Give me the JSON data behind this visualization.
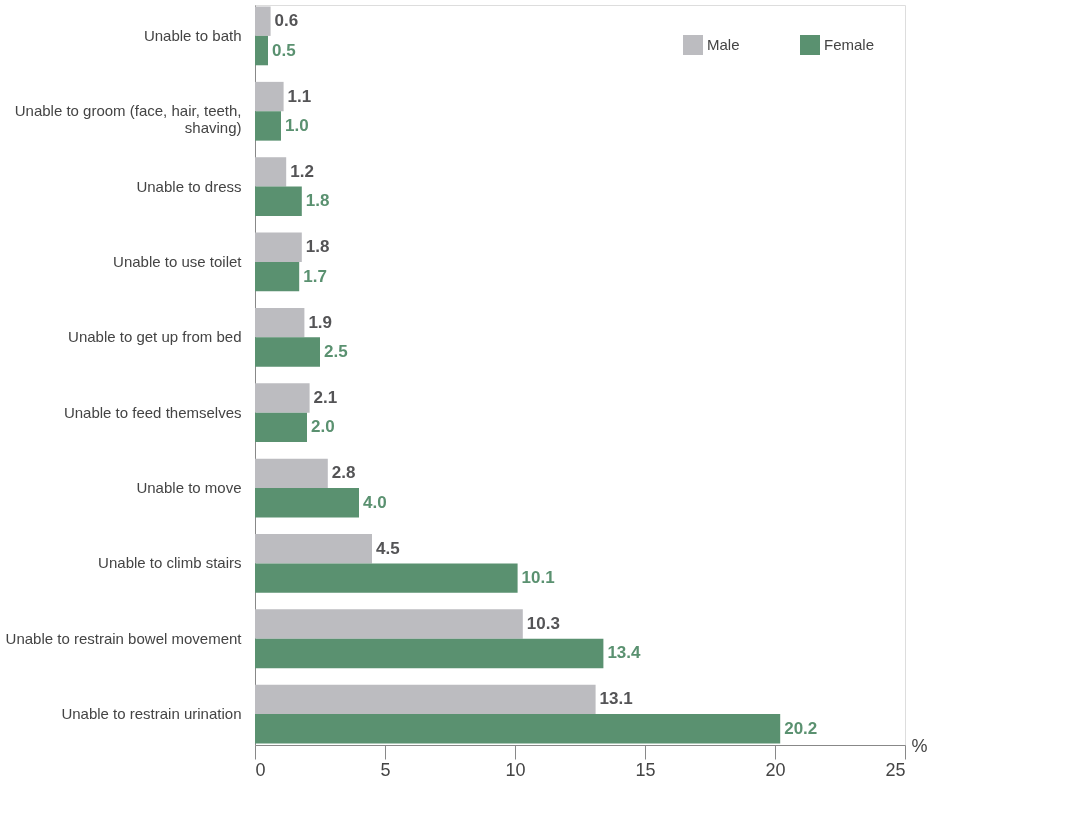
{
  "chart_data": {
    "type": "bar",
    "orientation": "horizontal",
    "xlabel": "%",
    "categories": [
      "Unable to bath",
      "Unable to groom (face, hair, teeth, shaving)",
      "Unable to dress",
      "Unable to use toilet",
      "Unable to get up from bed",
      "Unable to feed themselves",
      "Unable to move",
      "Unable to climb stairs",
      "Unable to restrain bowel movement",
      "Unable to restrain urination"
    ],
    "series": [
      {
        "name": "Male",
        "color": "#bcbcc0",
        "values": [
          0.6,
          1.1,
          1.2,
          1.8,
          1.9,
          2.1,
          2.8,
          4.5,
          10.3,
          13.1
        ],
        "value_labels": [
          "0.6",
          "1.1",
          "1.2",
          "1.8",
          "1.9",
          "2.1",
          "2.8",
          "4.5",
          "10.3",
          "13.1"
        ]
      },
      {
        "name": "Female",
        "color": "#5a9170",
        "values": [
          0.5,
          1.0,
          1.8,
          1.7,
          2.5,
          2.0,
          4.0,
          10.1,
          13.4,
          20.2
        ],
        "value_labels": [
          "0.5",
          "1.0",
          "1.8",
          "1.7",
          "2.5",
          "2.0",
          "4.0",
          "10.1",
          "13.4",
          "20.2"
        ]
      }
    ],
    "xlim": [
      0,
      25
    ],
    "xticks": [
      0,
      5,
      10,
      15,
      20,
      25
    ],
    "grid": false,
    "legend": "top right"
  }
}
